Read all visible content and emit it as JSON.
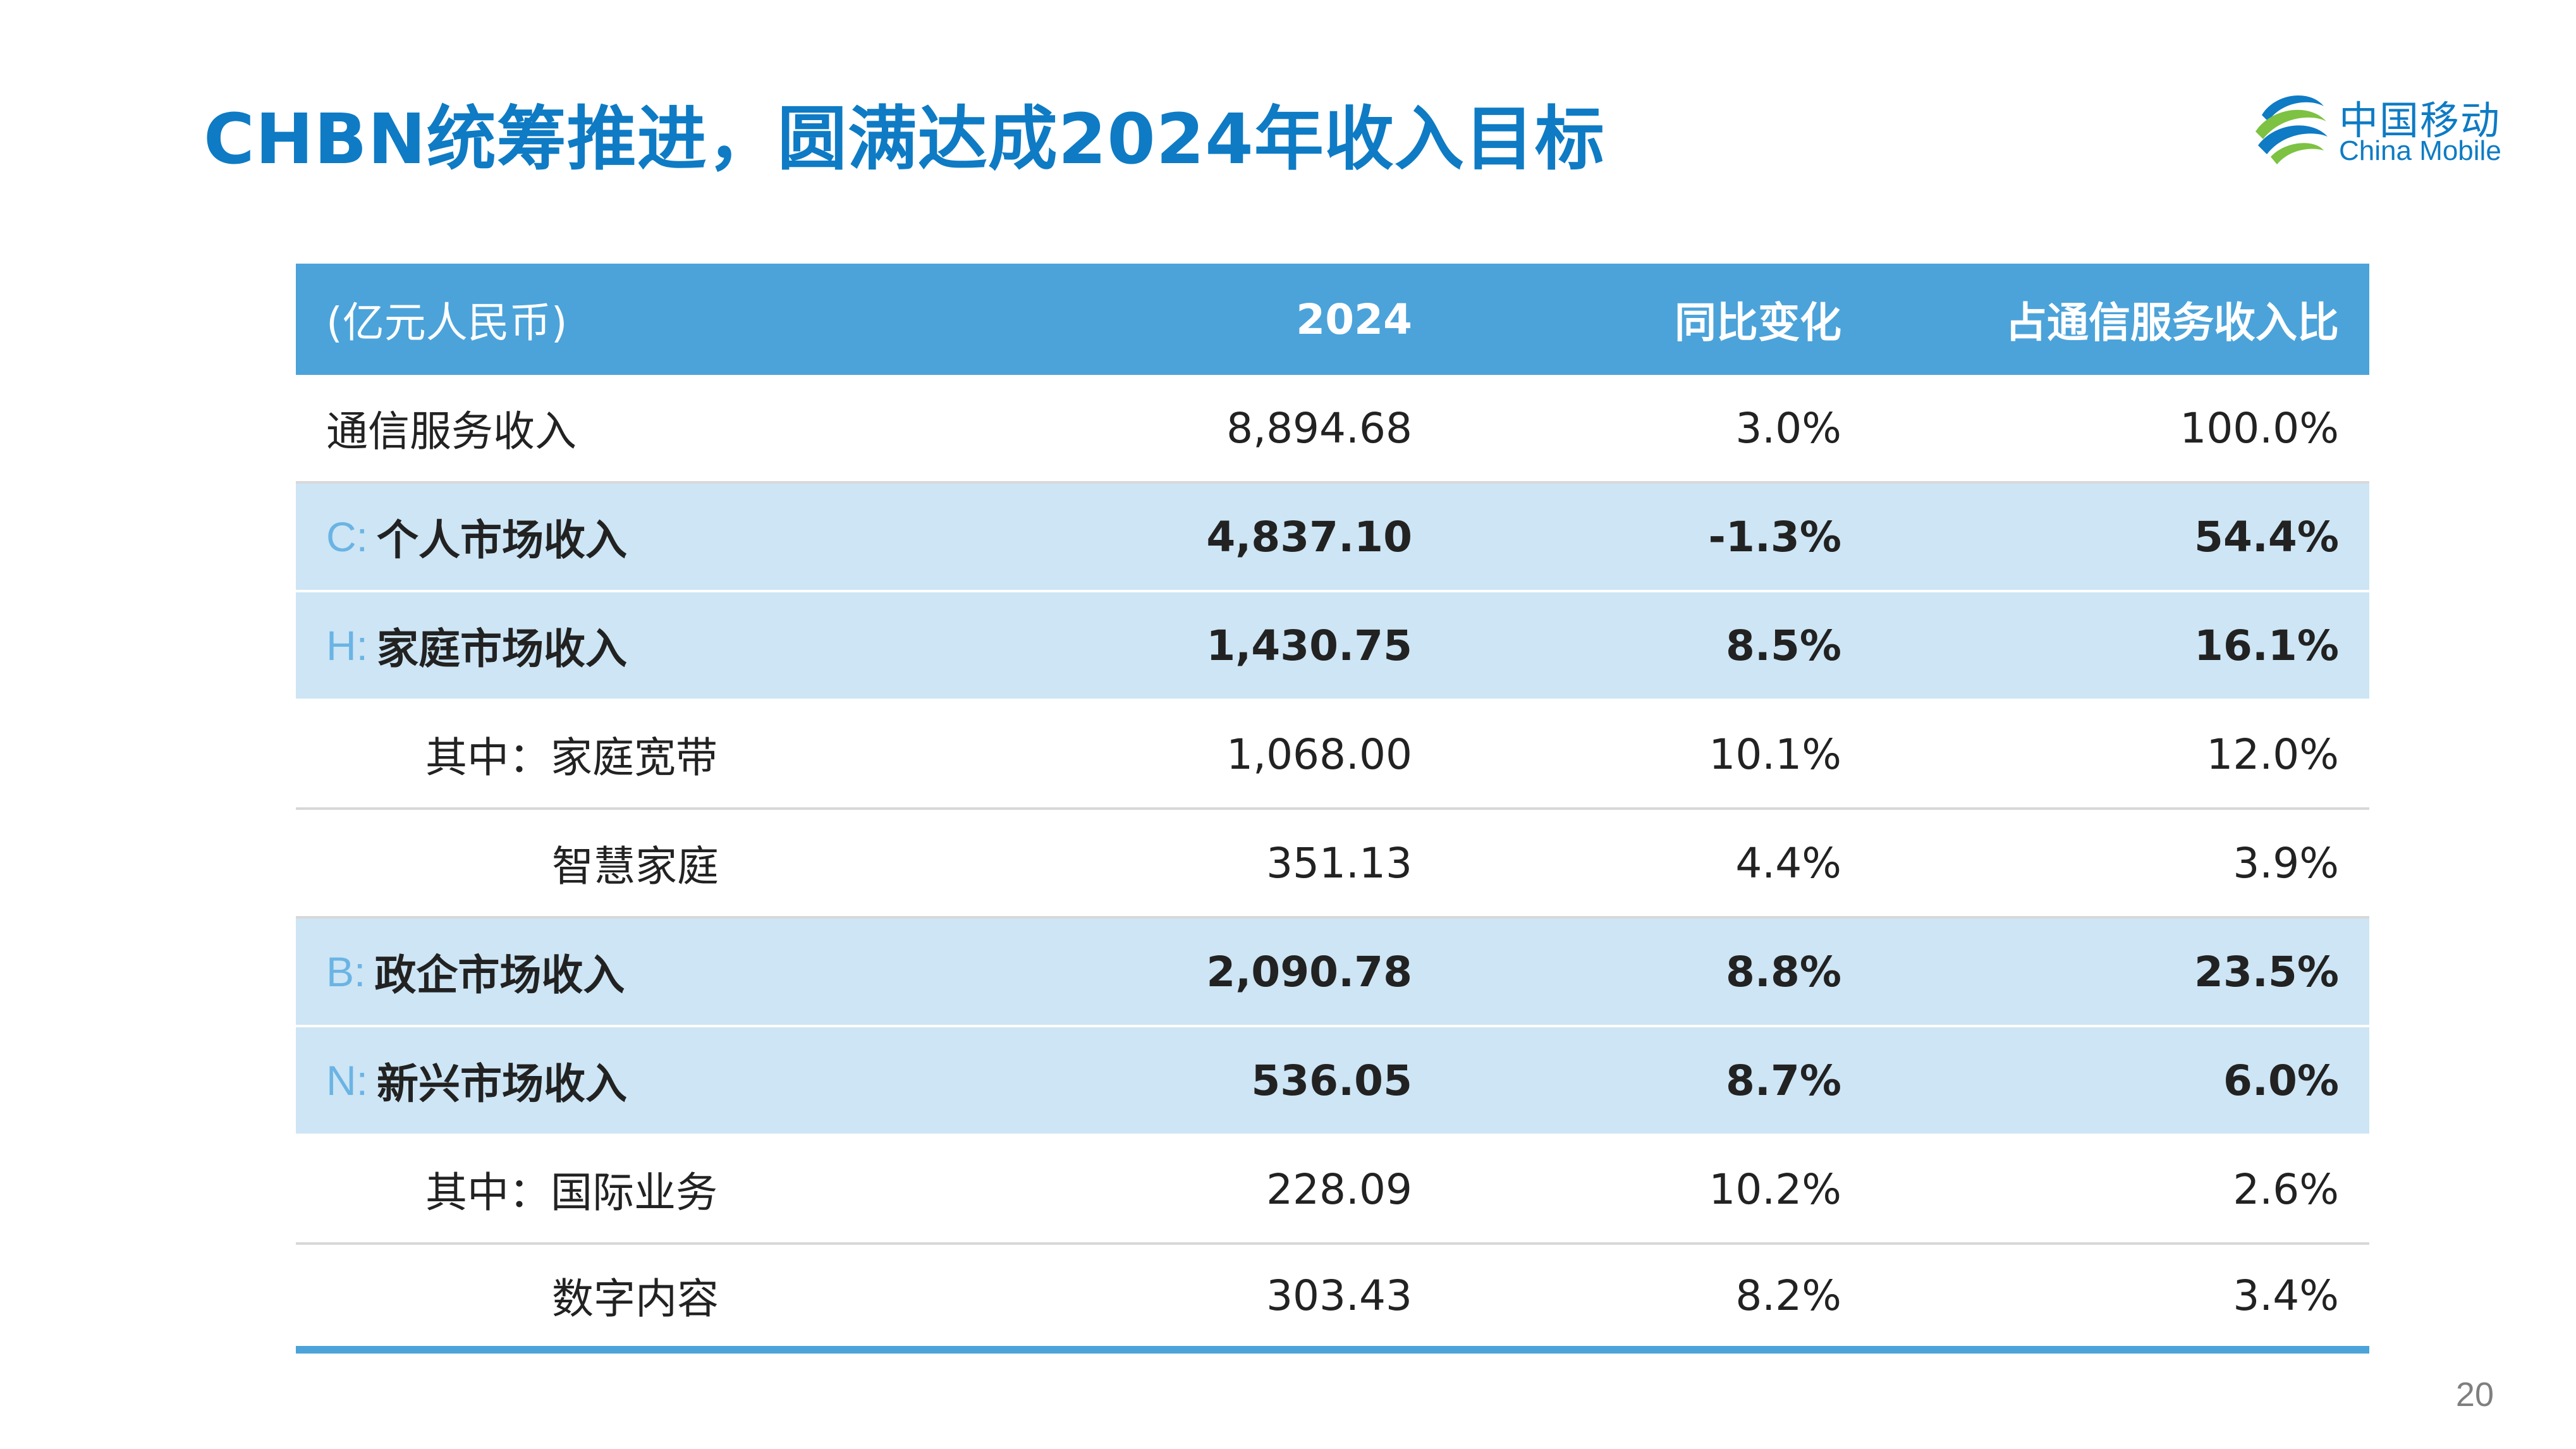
{
  "title": "CHBN统筹推进，圆满达成2024年收入目标",
  "logo": {
    "cn": "中国移动",
    "en": "China Mobile",
    "colors": {
      "blue": "#0E7BC4",
      "green": "#7DC242"
    }
  },
  "table": {
    "header": {
      "label": "(亿元人民币)",
      "c2024": "2024",
      "yoy": "同比变化",
      "share": "占通信服务收入比"
    },
    "rows": [
      {
        "prefix": "",
        "label": "通信服务收入",
        "v2024": "8,894.68",
        "yoy": "3.0%",
        "share": "100.0%"
      },
      {
        "prefix": "C:",
        "label": "个人市场收入",
        "v2024": "4,837.10",
        "yoy": "-1.3%",
        "share": "54.4%"
      },
      {
        "prefix": "H:",
        "label": "家庭市场收入",
        "v2024": "1,430.75",
        "yoy": "8.5%",
        "share": "16.1%"
      },
      {
        "prefix": "",
        "label": "其中：家庭宽带",
        "v2024": "1,068.00",
        "yoy": "10.1%",
        "share": "12.0%"
      },
      {
        "prefix": "",
        "label": "智慧家庭",
        "v2024": "351.13",
        "yoy": "4.4%",
        "share": "3.9%"
      },
      {
        "prefix": "B:",
        "label": "政企市场收入",
        "v2024": "2,090.78",
        "yoy": "8.8%",
        "share": "23.5%"
      },
      {
        "prefix": "N:",
        "label": "新兴市场收入",
        "v2024": "536.05",
        "yoy": "8.7%",
        "share": "6.0%"
      },
      {
        "prefix": "",
        "label": "其中：国际业务",
        "v2024": "228.09",
        "yoy": "10.2%",
        "share": "2.6%"
      },
      {
        "prefix": "",
        "label": "数字内容",
        "v2024": "303.43",
        "yoy": "8.2%",
        "share": "3.4%"
      }
    ]
  },
  "colors": {
    "header_bg": "#4BA3DA",
    "highlight_bg": "#CDE5F4",
    "title": "#0E7BC4",
    "prefix": "#6AB4E4"
  },
  "page_number": "20"
}
